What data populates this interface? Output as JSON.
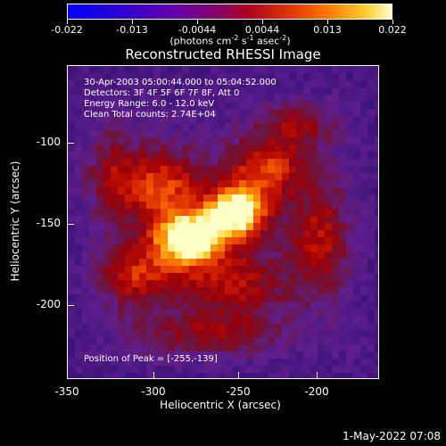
{
  "colorbar": {
    "tick_labels": [
      "-0.022",
      "-0.013",
      "-0.0044",
      "0.0044",
      "0.013",
      "0.022"
    ],
    "units_text": "(photons cm",
    "units_sup1": "-2",
    "units_mid": " s",
    "units_sup2": "-1",
    "units_end": " asec",
    "units_sup3": "-2",
    "units_close": ")"
  },
  "title": "Reconstructed RHESSI Image",
  "annotations": {
    "time_range": "30-Apr-2003 05:00:44.000 to 05:04:52.000",
    "detectors": "Detectors: 3F 4F 5F 6F 7F 8F, Att 0",
    "energy": "Energy Range: 6.0 - 12.0 keV",
    "clean": "Clean     Total counts: 2.74E+04",
    "peak": "Position of Peak = [-255,-139]"
  },
  "axes": {
    "x_ticks": [
      "-350",
      "-300",
      "-250",
      "-200"
    ],
    "y_ticks": [
      "-100",
      "-150",
      "-200"
    ],
    "xlabel": "Heliocentric X (arcsec)",
    "ylabel": "Heliocentric Y (arcsec)"
  },
  "image": {
    "peak_x": -255,
    "peak_y": -139
  },
  "timestamp": "1-May-2022 07:08"
}
